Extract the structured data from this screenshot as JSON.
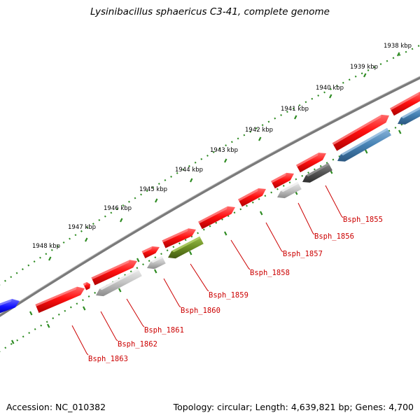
{
  "title": "Lysinibacillus sphaericus C3-41, complete genome",
  "accession_label": "Accession:",
  "accession": "NC_010382",
  "summary_text": "Topology: circular; Length: 4,639,821 bp; Genes: 4,700",
  "colors": {
    "background": "#ffffff",
    "backbone": "#7a7a7a",
    "tick_track": "#2e8b22",
    "label": "#cc0000",
    "gene_red": "#ff1010",
    "gene_gray": "#bdbdbd",
    "gene_dark": "#555555",
    "gene_olive": "#6b8e23",
    "gene_blue": "#4682b4",
    "gene_blue_bright": "#1010ff"
  },
  "kbp_labels": [
    "1938 kbp",
    "1939 kbp",
    "1940 kbp",
    "1941 kbp",
    "1942 kbp",
    "1943 kbp",
    "1944 kbp",
    "1945 kbp",
    "1946 kbp",
    "1947 kbp",
    "1948 kbp"
  ],
  "gene_labels": [
    "Bsph_1855",
    "Bsph_1856",
    "Bsph_1857",
    "Bsph_1858",
    "Bsph_1859",
    "Bsph_1860",
    "Bsph_1861",
    "Bsph_1862",
    "Bsph_1863"
  ]
}
